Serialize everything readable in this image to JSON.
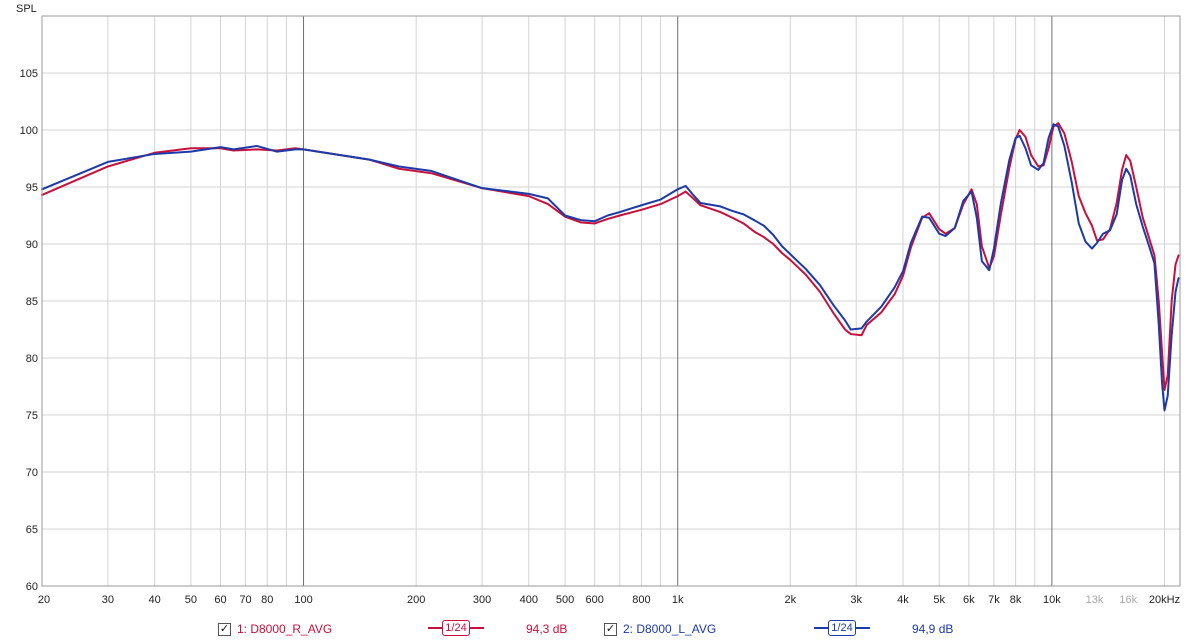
{
  "chart_data": {
    "type": "line",
    "ylabel": "SPL",
    "xscale": "log",
    "xlim": [
      20,
      22000
    ],
    "ylim": [
      60,
      110
    ],
    "yticks": [
      60,
      65,
      70,
      75,
      80,
      85,
      90,
      95,
      100,
      105
    ],
    "xticks": [
      {
        "value": 20,
        "label": "20",
        "dim": false
      },
      {
        "value": 30,
        "label": "30",
        "dim": false
      },
      {
        "value": 40,
        "label": "40",
        "dim": false
      },
      {
        "value": 50,
        "label": "50",
        "dim": false
      },
      {
        "value": 60,
        "label": "60",
        "dim": false
      },
      {
        "value": 70,
        "label": "70",
        "dim": false
      },
      {
        "value": 80,
        "label": "80",
        "dim": false
      },
      {
        "value": 100,
        "label": "100",
        "dim": false
      },
      {
        "value": 200,
        "label": "200",
        "dim": false
      },
      {
        "value": 300,
        "label": "300",
        "dim": false
      },
      {
        "value": 400,
        "label": "400",
        "dim": false
      },
      {
        "value": 500,
        "label": "500",
        "dim": false
      },
      {
        "value": 600,
        "label": "600",
        "dim": false
      },
      {
        "value": 800,
        "label": "800",
        "dim": false
      },
      {
        "value": 1000,
        "label": "1k",
        "dim": false
      },
      {
        "value": 2000,
        "label": "2k",
        "dim": false
      },
      {
        "value": 3000,
        "label": "3k",
        "dim": false
      },
      {
        "value": 4000,
        "label": "4k",
        "dim": false
      },
      {
        "value": 5000,
        "label": "5k",
        "dim": false
      },
      {
        "value": 6000,
        "label": "6k",
        "dim": false
      },
      {
        "value": 7000,
        "label": "7k",
        "dim": false
      },
      {
        "value": 8000,
        "label": "8k",
        "dim": false
      },
      {
        "value": 10000,
        "label": "10k",
        "dim": false
      },
      {
        "value": 13000,
        "label": "13k",
        "dim": true
      },
      {
        "value": 16000,
        "label": "16k",
        "dim": true
      },
      {
        "value": 20000,
        "label": "20kHz",
        "dim": false
      }
    ],
    "grid": true,
    "series": [
      {
        "name": "1: D8000_R_AVG",
        "color": "#c8103c",
        "points": [
          [
            20,
            94.3
          ],
          [
            30,
            96.8
          ],
          [
            40,
            98.0
          ],
          [
            50,
            98.4
          ],
          [
            60,
            98.4
          ],
          [
            65,
            98.2
          ],
          [
            75,
            98.3
          ],
          [
            85,
            98.2
          ],
          [
            95,
            98.4
          ],
          [
            100,
            98.3
          ],
          [
            150,
            97.4
          ],
          [
            180,
            96.6
          ],
          [
            220,
            96.2
          ],
          [
            300,
            94.9
          ],
          [
            400,
            94.2
          ],
          [
            450,
            93.5
          ],
          [
            500,
            92.4
          ],
          [
            550,
            91.9
          ],
          [
            600,
            91.8
          ],
          [
            650,
            92.2
          ],
          [
            700,
            92.5
          ],
          [
            800,
            93.0
          ],
          [
            900,
            93.5
          ],
          [
            1000,
            94.2
          ],
          [
            1050,
            94.6
          ],
          [
            1100,
            94.0
          ],
          [
            1150,
            93.4
          ],
          [
            1300,
            92.8
          ],
          [
            1400,
            92.3
          ],
          [
            1500,
            91.8
          ],
          [
            1600,
            91.1
          ],
          [
            1700,
            90.6
          ],
          [
            1800,
            90.0
          ],
          [
            1900,
            89.2
          ],
          [
            2000,
            88.6
          ],
          [
            2200,
            87.3
          ],
          [
            2400,
            85.8
          ],
          [
            2600,
            84.0
          ],
          [
            2800,
            82.5
          ],
          [
            2900,
            82.1
          ],
          [
            3100,
            82.0
          ],
          [
            3200,
            82.9
          ],
          [
            3500,
            84.0
          ],
          [
            3800,
            85.6
          ],
          [
            4000,
            87.2
          ],
          [
            4200,
            89.7
          ],
          [
            4500,
            92.3
          ],
          [
            4700,
            92.7
          ],
          [
            5000,
            91.3
          ],
          [
            5200,
            90.9
          ],
          [
            5500,
            91.4
          ],
          [
            5800,
            93.5
          ],
          [
            6100,
            94.8
          ],
          [
            6300,
            93.5
          ],
          [
            6500,
            89.8
          ],
          [
            6800,
            87.9
          ],
          [
            7000,
            88.9
          ],
          [
            7300,
            92.5
          ],
          [
            7700,
            96.7
          ],
          [
            8000,
            99.2
          ],
          [
            8200,
            100.0
          ],
          [
            8500,
            99.4
          ],
          [
            8800,
            97.8
          ],
          [
            9200,
            96.8
          ],
          [
            9500,
            96.9
          ],
          [
            9800,
            98.4
          ],
          [
            10100,
            100.3
          ],
          [
            10400,
            100.6
          ],
          [
            10800,
            99.7
          ],
          [
            11300,
            97.2
          ],
          [
            11800,
            94.2
          ],
          [
            12300,
            92.7
          ],
          [
            12800,
            91.6
          ],
          [
            13200,
            90.3
          ],
          [
            13700,
            90.4
          ],
          [
            14300,
            91.3
          ],
          [
            14900,
            93.6
          ],
          [
            15400,
            96.5
          ],
          [
            15800,
            97.8
          ],
          [
            16200,
            97.3
          ],
          [
            16800,
            95.0
          ],
          [
            17500,
            92.3
          ],
          [
            18200,
            90.5
          ],
          [
            18800,
            89.0
          ],
          [
            19300,
            85.0
          ],
          [
            19700,
            80.5
          ],
          [
            20000,
            77.2
          ],
          [
            20400,
            78.5
          ],
          [
            20900,
            85.0
          ],
          [
            21400,
            88.2
          ],
          [
            21800,
            89.0
          ]
        ]
      },
      {
        "name": "2: D8000_L_AVG",
        "color": "#1c3aa8",
        "points": [
          [
            20,
            94.8
          ],
          [
            30,
            97.2
          ],
          [
            40,
            97.9
          ],
          [
            50,
            98.1
          ],
          [
            60,
            98.5
          ],
          [
            65,
            98.3
          ],
          [
            75,
            98.6
          ],
          [
            85,
            98.1
          ],
          [
            95,
            98.3
          ],
          [
            100,
            98.3
          ],
          [
            150,
            97.4
          ],
          [
            180,
            96.8
          ],
          [
            220,
            96.4
          ],
          [
            300,
            94.9
          ],
          [
            400,
            94.4
          ],
          [
            450,
            94.0
          ],
          [
            500,
            92.5
          ],
          [
            550,
            92.1
          ],
          [
            600,
            92.0
          ],
          [
            650,
            92.5
          ],
          [
            700,
            92.8
          ],
          [
            800,
            93.4
          ],
          [
            900,
            93.9
          ],
          [
            1000,
            94.8
          ],
          [
            1050,
            95.1
          ],
          [
            1100,
            94.3
          ],
          [
            1150,
            93.6
          ],
          [
            1300,
            93.3
          ],
          [
            1400,
            92.9
          ],
          [
            1500,
            92.6
          ],
          [
            1600,
            92.1
          ],
          [
            1700,
            91.6
          ],
          [
            1800,
            90.8
          ],
          [
            1900,
            89.8
          ],
          [
            2000,
            89.1
          ],
          [
            2200,
            87.8
          ],
          [
            2400,
            86.4
          ],
          [
            2600,
            84.7
          ],
          [
            2800,
            83.3
          ],
          [
            2900,
            82.5
          ],
          [
            3100,
            82.6
          ],
          [
            3200,
            83.2
          ],
          [
            3500,
            84.5
          ],
          [
            3800,
            86.2
          ],
          [
            4000,
            87.6
          ],
          [
            4200,
            90.1
          ],
          [
            4500,
            92.4
          ],
          [
            4700,
            92.3
          ],
          [
            5000,
            90.9
          ],
          [
            5200,
            90.7
          ],
          [
            5500,
            91.4
          ],
          [
            5800,
            93.8
          ],
          [
            6100,
            94.6
          ],
          [
            6300,
            92.3
          ],
          [
            6500,
            88.5
          ],
          [
            6800,
            87.7
          ],
          [
            7000,
            89.6
          ],
          [
            7300,
            93.5
          ],
          [
            7700,
            97.4
          ],
          [
            8000,
            99.3
          ],
          [
            8200,
            99.5
          ],
          [
            8500,
            98.4
          ],
          [
            8800,
            96.9
          ],
          [
            9200,
            96.5
          ],
          [
            9500,
            97.1
          ],
          [
            9800,
            99.3
          ],
          [
            10100,
            100.5
          ],
          [
            10400,
            100.3
          ],
          [
            10800,
            98.6
          ],
          [
            11300,
            95.4
          ],
          [
            11800,
            91.8
          ],
          [
            12300,
            90.2
          ],
          [
            12800,
            89.6
          ],
          [
            13200,
            90.1
          ],
          [
            13700,
            90.9
          ],
          [
            14300,
            91.2
          ],
          [
            14900,
            92.6
          ],
          [
            15400,
            95.6
          ],
          [
            15800,
            96.6
          ],
          [
            16200,
            96.0
          ],
          [
            16800,
            93.5
          ],
          [
            17500,
            91.5
          ],
          [
            18200,
            89.8
          ],
          [
            18800,
            88.3
          ],
          [
            19300,
            83.0
          ],
          [
            19700,
            77.8
          ],
          [
            20000,
            75.4
          ],
          [
            20400,
            76.7
          ],
          [
            20900,
            82.0
          ],
          [
            21400,
            85.8
          ],
          [
            21800,
            87.0
          ]
        ]
      }
    ]
  },
  "legend": {
    "items": [
      {
        "checked": "✓",
        "name": "1: D8000_R_AVG",
        "smoothing": "1/24",
        "avg": "94,3 dB",
        "color": "#c8103c"
      },
      {
        "checked": "✓",
        "name": "2: D8000_L_AVG",
        "smoothing": "1/24",
        "avg": "94,9 dB",
        "color": "#1c3aa8"
      }
    ]
  }
}
